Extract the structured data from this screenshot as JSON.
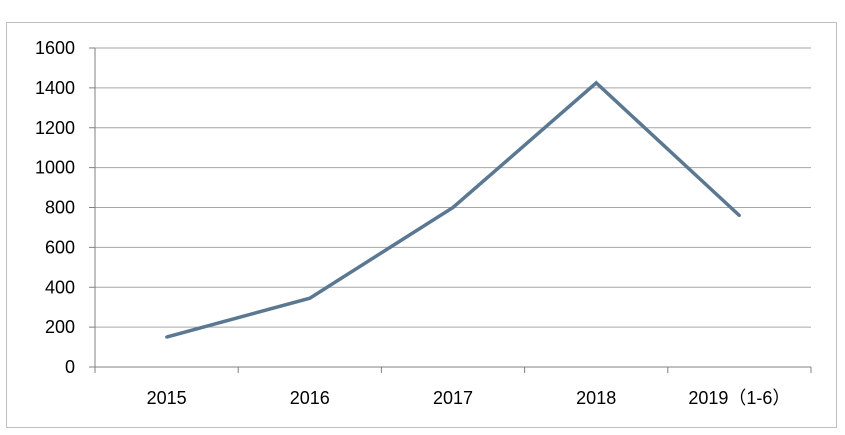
{
  "chart_data": {
    "type": "line",
    "title": "",
    "xlabel": "",
    "ylabel": "",
    "categories": [
      "2015",
      "2016",
      "2017",
      "2018",
      "2019（1-6）"
    ],
    "series": [
      {
        "values": [
          150,
          345,
          800,
          1425,
          760
        ],
        "color": "#5a7892"
      }
    ],
    "ylim": [
      0,
      1600
    ],
    "yticks": [
      "0",
      "200",
      "400",
      "600",
      "800",
      "1000",
      "1200",
      "1400",
      "1600"
    ],
    "grid": true,
    "legend": "none",
    "colors": {
      "gridline": "#a6a6a6",
      "axis": "#808080",
      "frame": "#bfbfbf"
    }
  }
}
